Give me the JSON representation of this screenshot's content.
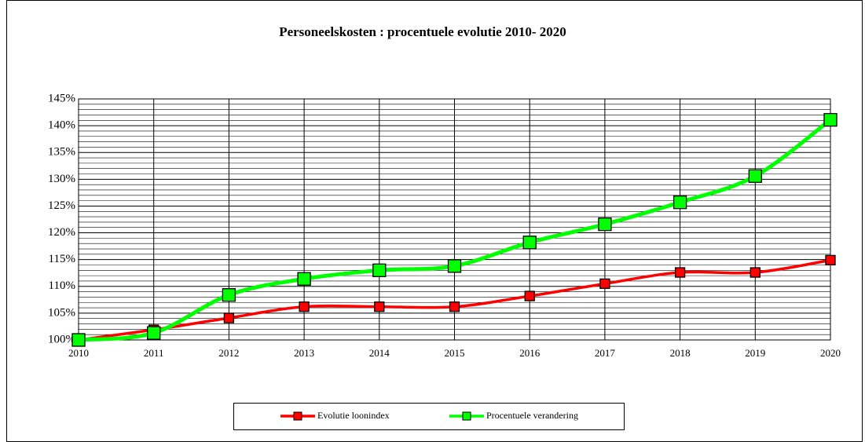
{
  "chart_data": {
    "type": "line",
    "title": "Personeelskosten : procentuele evolutie  2010- 2020",
    "categories": [
      "2010",
      "2011",
      "2012",
      "2013",
      "2014",
      "2015",
      "2016",
      "2017",
      "2018",
      "2019",
      "2020"
    ],
    "series": [
      {
        "name": "Evolutie loonindex",
        "color": "#ff0000",
        "marker_color": "#ff0000",
        "values": [
          100,
          101.9,
          104.1,
          106.2,
          106.2,
          106.2,
          108.2,
          110.5,
          112.6,
          112.6,
          114.9
        ]
      },
      {
        "name": "Procentuele verandering",
        "color": "#00ff00",
        "marker_color": "#00ff00",
        "values": [
          100,
          101.3,
          108.4,
          111.4,
          113.0,
          113.8,
          118.2,
          121.6,
          125.7,
          130.6,
          141.1
        ]
      }
    ],
    "ylim": [
      100,
      145
    ],
    "yticks": [
      {
        "value": 100,
        "label": "100%"
      },
      {
        "value": 105,
        "label": "105%"
      },
      {
        "value": 110,
        "label": "110%"
      },
      {
        "value": 115,
        "label": "115%"
      },
      {
        "value": 120,
        "label": "120%"
      },
      {
        "value": 125,
        "label": "125%"
      },
      {
        "value": 130,
        "label": "130%"
      },
      {
        "value": 135,
        "label": "135%"
      },
      {
        "value": 140,
        "label": "140%"
      },
      {
        "value": 145,
        "label": "145%"
      }
    ],
    "grid": true,
    "minor_grid": true,
    "legend": "bottom"
  }
}
